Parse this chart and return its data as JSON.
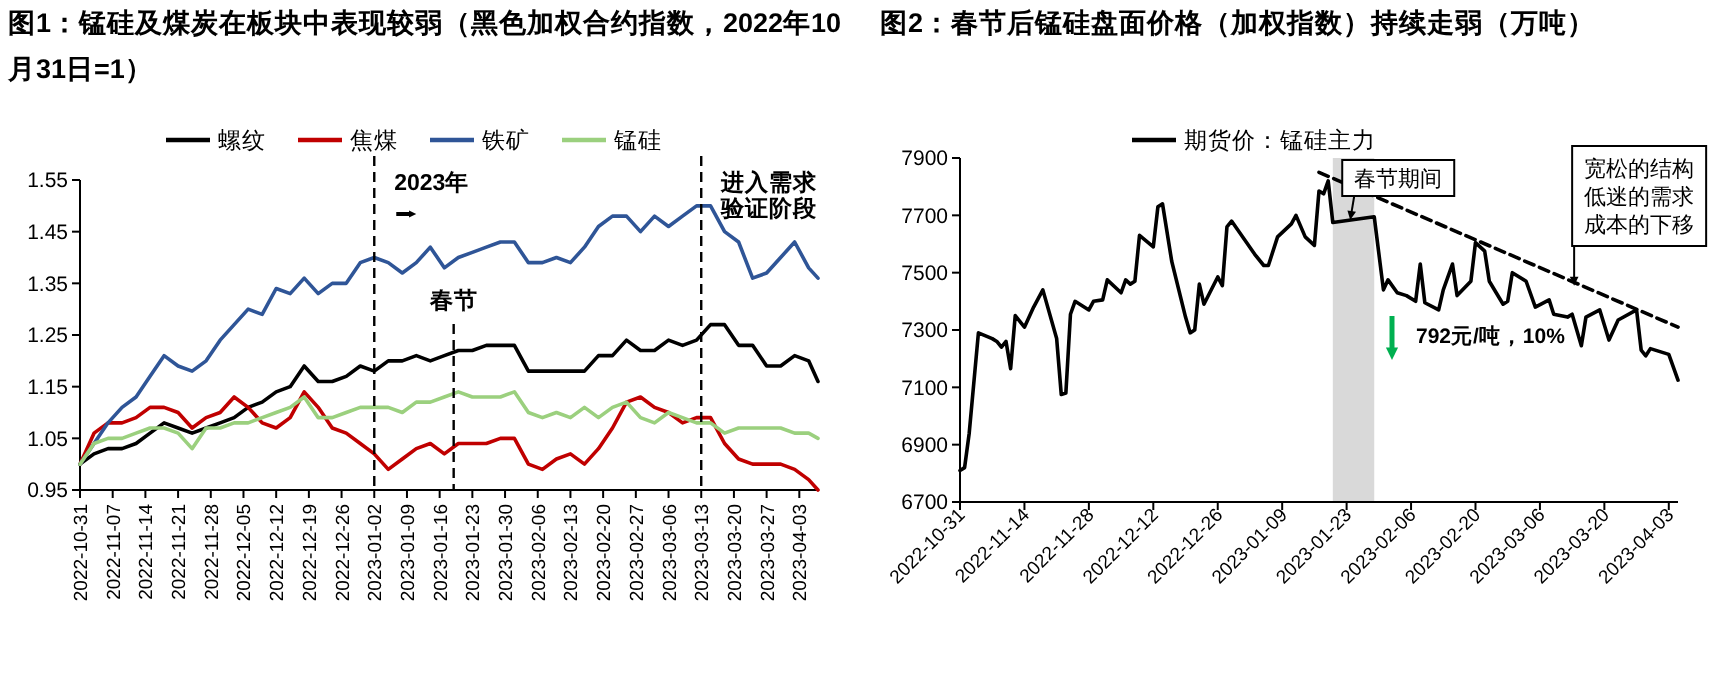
{
  "chart_data": [
    {
      "type": "line",
      "title": "图1：锰硅及煤炭在板块中表现较弱（黑色加权合约指数，2022年10月31日=1）",
      "legend": "top",
      "x": [
        "2022-10-31",
        "2022-11-03",
        "2022-11-06",
        "2022-11-09",
        "2022-11-12",
        "2022-11-15",
        "2022-11-18",
        "2022-11-21",
        "2022-11-24",
        "2022-11-27",
        "2022-11-30",
        "2022-12-03",
        "2022-12-06",
        "2022-12-09",
        "2022-12-12",
        "2022-12-15",
        "2022-12-18",
        "2022-12-21",
        "2022-12-24",
        "2022-12-27",
        "2022-12-30",
        "2023-01-02",
        "2023-01-05",
        "2023-01-08",
        "2023-01-11",
        "2023-01-14",
        "2023-01-17",
        "2023-01-20",
        "2023-01-23",
        "2023-01-26",
        "2023-01-29",
        "2023-02-01",
        "2023-02-04",
        "2023-02-07",
        "2023-02-10",
        "2023-02-13",
        "2023-02-16",
        "2023-02-19",
        "2023-02-22",
        "2023-02-25",
        "2023-02-28",
        "2023-03-03",
        "2023-03-06",
        "2023-03-09",
        "2023-03-12",
        "2023-03-15",
        "2023-03-18",
        "2023-03-21",
        "2023-03-24",
        "2023-03-27",
        "2023-03-30",
        "2023-04-02",
        "2023-04-05",
        "2023-04-07"
      ],
      "series": [
        {
          "name": "螺纹",
          "color": "#000000",
          "values": [
            1.0,
            1.02,
            1.03,
            1.03,
            1.04,
            1.06,
            1.08,
            1.07,
            1.06,
            1.07,
            1.08,
            1.09,
            1.11,
            1.12,
            1.14,
            1.15,
            1.19,
            1.16,
            1.16,
            1.17,
            1.19,
            1.18,
            1.2,
            1.2,
            1.21,
            1.2,
            1.21,
            1.22,
            1.22,
            1.23,
            1.23,
            1.23,
            1.18,
            1.18,
            1.18,
            1.18,
            1.18,
            1.21,
            1.21,
            1.24,
            1.22,
            1.22,
            1.24,
            1.23,
            1.24,
            1.27,
            1.27,
            1.23,
            1.23,
            1.19,
            1.19,
            1.21,
            1.2,
            1.16
          ]
        },
        {
          "name": "焦煤",
          "color": "#c00000",
          "values": [
            1.0,
            1.06,
            1.08,
            1.08,
            1.09,
            1.11,
            1.11,
            1.1,
            1.07,
            1.09,
            1.1,
            1.13,
            1.11,
            1.08,
            1.07,
            1.09,
            1.14,
            1.11,
            1.07,
            1.06,
            1.04,
            1.02,
            0.99,
            1.01,
            1.03,
            1.04,
            1.02,
            1.04,
            1.04,
            1.04,
            1.05,
            1.05,
            1.0,
            0.99,
            1.01,
            1.02,
            1.0,
            1.03,
            1.07,
            1.12,
            1.13,
            1.11,
            1.1,
            1.08,
            1.09,
            1.09,
            1.04,
            1.01,
            1.0,
            1.0,
            1.0,
            0.99,
            0.97,
            0.95
          ]
        },
        {
          "name": "铁矿",
          "color": "#2f5597",
          "values": [
            1.0,
            1.04,
            1.08,
            1.11,
            1.13,
            1.17,
            1.21,
            1.19,
            1.18,
            1.2,
            1.24,
            1.27,
            1.3,
            1.29,
            1.34,
            1.33,
            1.36,
            1.33,
            1.35,
            1.35,
            1.39,
            1.4,
            1.39,
            1.37,
            1.39,
            1.42,
            1.38,
            1.4,
            1.41,
            1.42,
            1.43,
            1.43,
            1.39,
            1.39,
            1.4,
            1.39,
            1.42,
            1.46,
            1.48,
            1.48,
            1.45,
            1.48,
            1.46,
            1.48,
            1.5,
            1.5,
            1.45,
            1.43,
            1.36,
            1.37,
            1.4,
            1.43,
            1.38,
            1.36
          ]
        },
        {
          "name": "锰硅",
          "color": "#9bd07e",
          "values": [
            1.0,
            1.04,
            1.05,
            1.05,
            1.06,
            1.07,
            1.07,
            1.06,
            1.03,
            1.07,
            1.07,
            1.08,
            1.08,
            1.09,
            1.1,
            1.11,
            1.13,
            1.09,
            1.09,
            1.1,
            1.11,
            1.11,
            1.11,
            1.1,
            1.12,
            1.12,
            1.13,
            1.14,
            1.13,
            1.13,
            1.13,
            1.14,
            1.1,
            1.09,
            1.1,
            1.09,
            1.11,
            1.09,
            1.11,
            1.12,
            1.09,
            1.08,
            1.1,
            1.09,
            1.08,
            1.08,
            1.06,
            1.07,
            1.07,
            1.07,
            1.07,
            1.06,
            1.06,
            1.05
          ]
        }
      ],
      "xlim": [
        "2022-10-31",
        "2023-04-07"
      ],
      "xticks": [
        "2022-10-31",
        "2022-11-07",
        "2022-11-14",
        "2022-11-21",
        "2022-11-28",
        "2022-12-05",
        "2022-12-12",
        "2022-12-19",
        "2022-12-26",
        "2023-01-02",
        "2023-01-09",
        "2023-01-16",
        "2023-01-23",
        "2023-01-30",
        "2023-02-06",
        "2023-02-13",
        "2023-02-20",
        "2023-02-27",
        "2023-03-06",
        "2023-03-13",
        "2023-03-20",
        "2023-03-27",
        "2023-04-03"
      ],
      "ylim": [
        0.95,
        1.55
      ],
      "yticks": [
        0.95,
        1.05,
        1.15,
        1.25,
        1.35,
        1.45,
        1.55
      ],
      "ref_lines": [
        {
          "axis": "x",
          "value": "2023-01-02",
          "label": "2023年",
          "color": "#000000",
          "line_style": "dashed"
        },
        {
          "axis": "x",
          "value": "2023-01-19",
          "label": "春节",
          "color": "#000000",
          "line_style": "dashed"
        },
        {
          "axis": "x",
          "value": "2023-03-13",
          "label": "进入需求验证阶段",
          "color": "#000000",
          "line_style": "dashed"
        }
      ]
    },
    {
      "type": "line",
      "title": "图2：春节后锰硅盘面价格（加权指数）持续走弱（万吨）",
      "legend": "top",
      "x": [
        "2022-10-31",
        "2022-11-01",
        "2022-11-02",
        "2022-11-04",
        "2022-11-07",
        "2022-11-08",
        "2022-11-09",
        "2022-11-10",
        "2022-11-11",
        "2022-11-12",
        "2022-11-14",
        "2022-11-16",
        "2022-11-18",
        "2022-11-21",
        "2022-11-22",
        "2022-11-23",
        "2022-11-24",
        "2022-11-25",
        "2022-11-28",
        "2022-11-29",
        "2022-12-01",
        "2022-12-02",
        "2022-12-05",
        "2022-12-06",
        "2022-12-07",
        "2022-12-08",
        "2022-12-09",
        "2022-12-12",
        "2022-12-13",
        "2022-12-14",
        "2022-12-16",
        "2022-12-19",
        "2022-12-20",
        "2022-12-21",
        "2022-12-22",
        "2022-12-23",
        "2022-12-26",
        "2022-12-27",
        "2022-12-28",
        "2022-12-29",
        "2023-01-03",
        "2023-01-05",
        "2023-01-06",
        "2023-01-08",
        "2023-01-11",
        "2023-01-12",
        "2023-01-14",
        "2023-01-16",
        "2023-01-17",
        "2023-01-18",
        "2023-01-19",
        "2023-01-20",
        "2023-01-29",
        "2023-01-31",
        "2023-02-01",
        "2023-02-03",
        "2023-02-05",
        "2023-02-07",
        "2023-02-08",
        "2023-02-09",
        "2023-02-12",
        "2023-02-13",
        "2023-02-15",
        "2023-02-16",
        "2023-02-19",
        "2023-02-20",
        "2023-02-22",
        "2023-02-23",
        "2023-02-26",
        "2023-02-27",
        "2023-02-28",
        "2023-03-03",
        "2023-03-05",
        "2023-03-08",
        "2023-03-09",
        "2023-03-12",
        "2023-03-13",
        "2023-03-15",
        "2023-03-16",
        "2023-03-19",
        "2023-03-21",
        "2023-03-23",
        "2023-03-27",
        "2023-03-28",
        "2023-03-29",
        "2023-03-30",
        "2023-04-03",
        "2023-04-05"
      ],
      "series": [
        {
          "name": "期货价：锰硅主力",
          "color": "#000000",
          "values": [
            6810,
            6820,
            6940,
            7290,
            7270,
            7260,
            7240,
            7260,
            7165,
            7350,
            7310,
            7380,
            7440,
            7270,
            7075,
            7080,
            7355,
            7400,
            7370,
            7400,
            7405,
            7475,
            7430,
            7475,
            7460,
            7470,
            7630,
            7590,
            7730,
            7740,
            7540,
            7345,
            7290,
            7300,
            7460,
            7390,
            7485,
            7455,
            7660,
            7680,
            7565,
            7525,
            7525,
            7625,
            7670,
            7700,
            7625,
            7595,
            7785,
            7775,
            7820,
            7675,
            7695,
            7440,
            7475,
            7430,
            7420,
            7400,
            7530,
            7395,
            7370,
            7440,
            7530,
            7420,
            7470,
            7605,
            7575,
            7470,
            7390,
            7400,
            7500,
            7470,
            7380,
            7405,
            7355,
            7345,
            7355,
            7245,
            7345,
            7370,
            7265,
            7335,
            7370,
            7230,
            7210,
            7235,
            7215,
            7125
          ]
        },
        {
          "type": "line",
          "color": "#000000",
          "line_style": "dashed",
          "x": [
            "2023-01-17",
            "2023-04-05"
          ],
          "values": [
            7850,
            7310
          ]
        }
      ],
      "xlim": [
        "2022-10-31",
        "2023-04-05"
      ],
      "xticks": [
        "2022-10-31",
        "2022-11-14",
        "2022-11-28",
        "2022-12-12",
        "2022-12-26",
        "2023-01-09",
        "2023-01-23",
        "2023-02-06",
        "2023-02-20",
        "2023-03-06",
        "2023-03-20",
        "2023-04-03"
      ],
      "ylim": [
        6700,
        7900
      ],
      "yticks": [
        6700,
        6900,
        7100,
        7300,
        7500,
        7700,
        7900
      ],
      "bands": [
        {
          "axis": "x",
          "from": "2023-01-20",
          "to": "2023-01-29",
          "label": "春节期间",
          "color": "#d9d9d9"
        }
      ],
      "annotations": [
        {
          "text": "宽松的结构低迷的需求成本的下移",
          "x": "2023-03-13",
          "y": 7440
        },
        "792元/吨，10%"
      ]
    }
  ]
}
